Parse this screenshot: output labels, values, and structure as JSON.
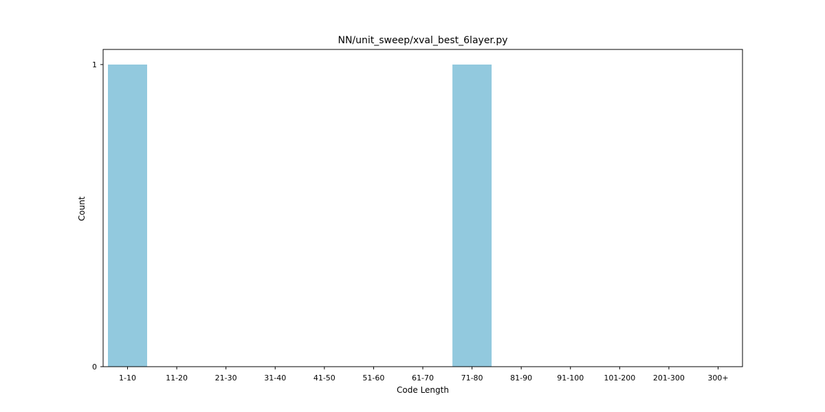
{
  "chart_data": {
    "type": "bar",
    "title": "NN/unit_sweep/xval_best_6layer.py",
    "xlabel": "Code Length",
    "ylabel": "Count",
    "categories": [
      "1-10",
      "11-20",
      "21-30",
      "31-40",
      "41-50",
      "51-60",
      "61-70",
      "71-80",
      "81-90",
      "91-100",
      "101-200",
      "201-300",
      "300+"
    ],
    "values": [
      1,
      0,
      0,
      0,
      0,
      0,
      0,
      1,
      0,
      0,
      0,
      0,
      0
    ],
    "ylim": [
      0,
      1
    ],
    "yticks": [
      0,
      1
    ],
    "grid": false,
    "legend": "none",
    "bar_color": "#92c9de"
  }
}
